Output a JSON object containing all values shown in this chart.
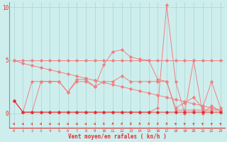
{
  "x": [
    0,
    1,
    2,
    3,
    4,
    5,
    6,
    7,
    8,
    9,
    10,
    11,
    12,
    13,
    14,
    15,
    16,
    17,
    18,
    19,
    20,
    21,
    22,
    23
  ],
  "line_flat": [
    5.0,
    5.0,
    5.0,
    5.0,
    5.0,
    5.0,
    5.0,
    5.0,
    5.0,
    5.0,
    5.0,
    5.0,
    5.0,
    5.0,
    5.0,
    5.0,
    5.0,
    5.0,
    5.0,
    5.0,
    5.0,
    5.0,
    5.0,
    5.0
  ],
  "line_decline": [
    5.0,
    4.7,
    4.5,
    4.3,
    4.1,
    3.9,
    3.7,
    3.5,
    3.3,
    3.1,
    2.9,
    2.7,
    2.5,
    2.3,
    2.1,
    1.9,
    1.7,
    1.5,
    1.3,
    1.1,
    0.9,
    0.7,
    0.5,
    0.3
  ],
  "line_rafales": [
    1.2,
    0.1,
    0.1,
    3.0,
    3.0,
    3.0,
    2.0,
    3.2,
    3.2,
    2.5,
    4.6,
    5.8,
    6.0,
    5.3,
    5.1,
    5.0,
    3.2,
    3.0,
    0.3,
    0.3,
    0.3,
    0.3,
    0.3,
    0.3
  ],
  "line_moyen": [
    1.2,
    0.1,
    0.1,
    0.1,
    0.1,
    0.1,
    0.1,
    0.1,
    0.1,
    0.1,
    0.1,
    0.1,
    0.1,
    0.1,
    0.1,
    0.1,
    0.1,
    0.1,
    0.1,
    0.1,
    0.1,
    0.1,
    0.1,
    0.1
  ],
  "line_spike": [
    1.2,
    0.1,
    0.1,
    0.1,
    0.1,
    0.1,
    0.1,
    0.1,
    0.1,
    0.1,
    0.1,
    0.1,
    0.1,
    0.1,
    0.1,
    0.1,
    0.5,
    10.2,
    3.0,
    0.0,
    5.0,
    0.0,
    0.7,
    0.2
  ],
  "line_mid": [
    1.2,
    0.1,
    3.0,
    3.0,
    3.0,
    3.0,
    2.0,
    3.0,
    3.0,
    2.5,
    3.0,
    3.0,
    3.5,
    3.0,
    3.0,
    3.0,
    3.0,
    3.0,
    0.5,
    1.0,
    1.5,
    0.5,
    3.0,
    0.5
  ],
  "arrow_angles": [
    45,
    45,
    45,
    45,
    45,
    45,
    45,
    45,
    45,
    45,
    180,
    180,
    180,
    180,
    180,
    180,
    180,
    180,
    225,
    225,
    225,
    225,
    225,
    225
  ],
  "xlabel": "Vent moyen/en rafales ( kn/h )",
  "xlim_min": -0.5,
  "xlim_max": 23.5,
  "ylim_min": -1.4,
  "ylim_max": 10.5,
  "yticks": [
    0,
    5,
    10
  ],
  "color_light": "#f08080",
  "color_dark": "#e03030",
  "color_mid": "#e87070",
  "bg_color": "#ceeeed",
  "grid_color": "#aad4d4",
  "figsize": [
    3.2,
    2.0
  ],
  "dpi": 100
}
